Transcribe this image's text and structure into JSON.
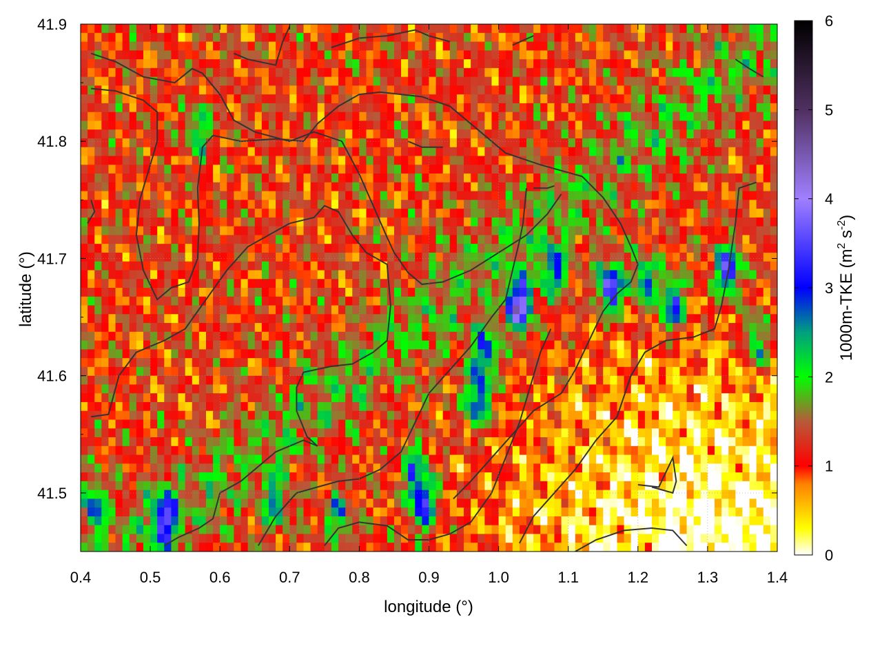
{
  "chart_data": {
    "type": "heatmap",
    "title": "",
    "xlabel": "longitude (°)",
    "ylabel": "latitude (°)",
    "xlim": [
      0.4,
      1.4
    ],
    "ylim": [
      41.45,
      41.9
    ],
    "x_ticks": [
      "0.4",
      "0.5",
      "0.6",
      "0.7",
      "0.8",
      "0.9",
      "1.0",
      "1.1",
      "1.2",
      "1.3",
      "1.4"
    ],
    "y_ticks": [
      "41.5",
      "41.6",
      "41.7",
      "41.8",
      "41.9"
    ],
    "colorbar": {
      "label": "1000m-TKE (m² s⁻²)",
      "label_main": "1000m-TKE (m",
      "label_sup1": "2",
      "label_mid": " s",
      "label_sup2": "-2",
      "label_end": ")",
      "range": [
        0,
        6
      ],
      "ticks": [
        "0",
        "1",
        "2",
        "3",
        "4",
        "5",
        "6"
      ],
      "palette": [
        [
          0.0,
          "#ffffff"
        ],
        [
          0.3,
          "#ffff00"
        ],
        [
          0.8,
          "#ff8000"
        ],
        [
          1.0,
          "#ff0000"
        ],
        [
          1.5,
          "#b85a3a"
        ],
        [
          2.0,
          "#00ff00"
        ],
        [
          2.5,
          "#00a080"
        ],
        [
          3.0,
          "#0000ff"
        ],
        [
          4.0,
          "#a080ff"
        ],
        [
          5.0,
          "#503060"
        ],
        [
          6.0,
          "#000000"
        ]
      ]
    },
    "grid": true,
    "overlay": "coastline and administrative boundary contours"
  }
}
